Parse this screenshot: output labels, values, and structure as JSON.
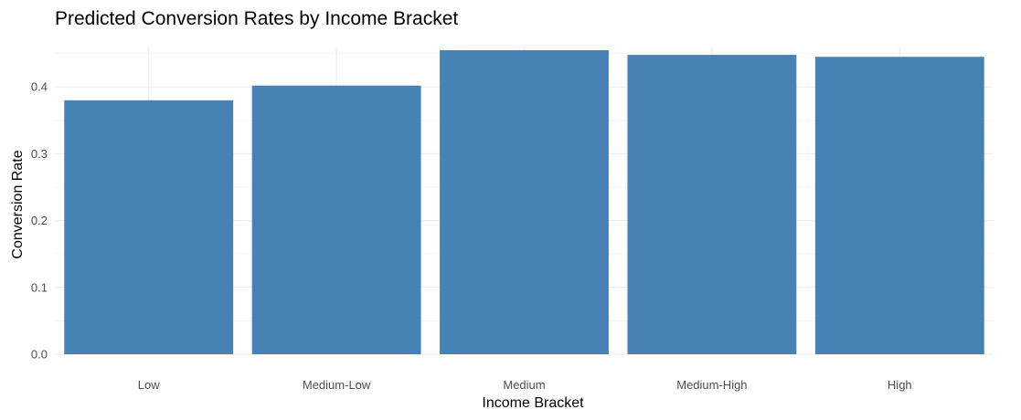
{
  "chart_data": {
    "type": "bar",
    "title": "Predicted Conversion Rates by Income Bracket",
    "xlabel": "Income Bracket",
    "ylabel": "Conversion Rate",
    "categories": [
      "Low",
      "Medium-Low",
      "Medium",
      "Medium-High",
      "High"
    ],
    "values": [
      0.38,
      0.402,
      0.455,
      0.448,
      0.445
    ],
    "ylim": [
      0,
      0.46
    ],
    "yticks": [
      0.0,
      0.1,
      0.2,
      0.3,
      0.4
    ],
    "ytick_labels": [
      "0.0",
      "0.1",
      "0.2",
      "0.3",
      "0.4"
    ],
    "grid": true,
    "legend": "none",
    "bar_color": "#4682b4"
  }
}
